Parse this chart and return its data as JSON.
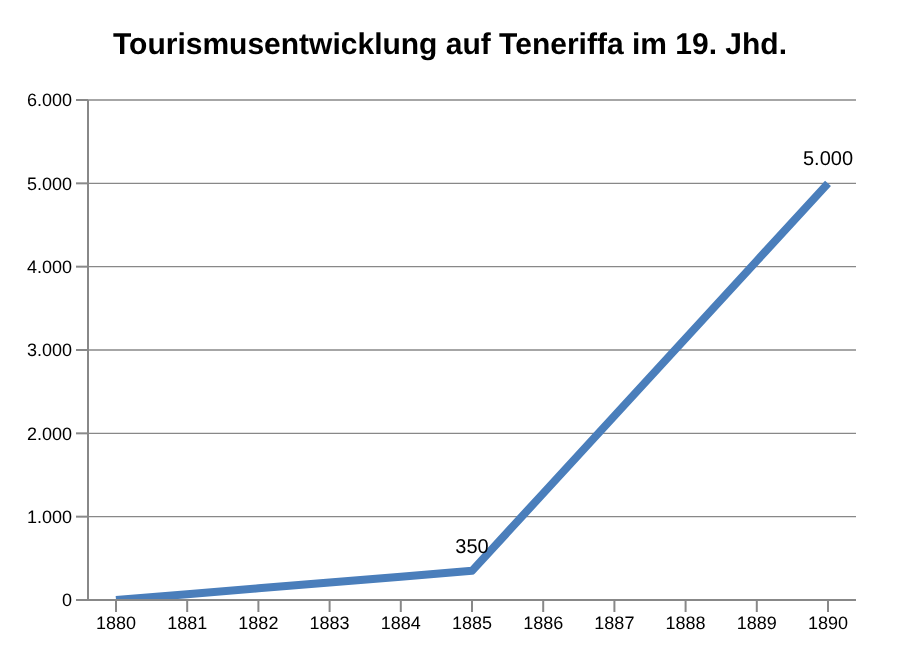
{
  "chart_data": {
    "type": "line",
    "title": "Tourismusentwicklung auf Teneriffa im 19. Jhd.",
    "categories": [
      "1880",
      "1881",
      "1882",
      "1883",
      "1884",
      "1885",
      "1886",
      "1887",
      "1888",
      "1889",
      "1890"
    ],
    "series": [
      {
        "color": "#4a7ebb",
        "values": [
          0,
          70,
          140,
          210,
          280,
          350,
          1280,
          2210,
          3140,
          4070,
          5000
        ],
        "value_labels": [
          null,
          null,
          null,
          null,
          null,
          "350",
          null,
          null,
          null,
          null,
          "5.000"
        ]
      }
    ],
    "ylim": [
      0,
      6000
    ],
    "yticks": [
      {
        "value": 0,
        "label": "0"
      },
      {
        "value": 1000,
        "label": "1.000"
      },
      {
        "value": 2000,
        "label": "2.000"
      },
      {
        "value": 3000,
        "label": "3.000"
      },
      {
        "value": 4000,
        "label": "4.000"
      },
      {
        "value": 5000,
        "label": "5.000"
      },
      {
        "value": 6000,
        "label": "6.000"
      }
    ],
    "grid": "y",
    "legend": false,
    "marker": "none",
    "line_style": "solid"
  }
}
